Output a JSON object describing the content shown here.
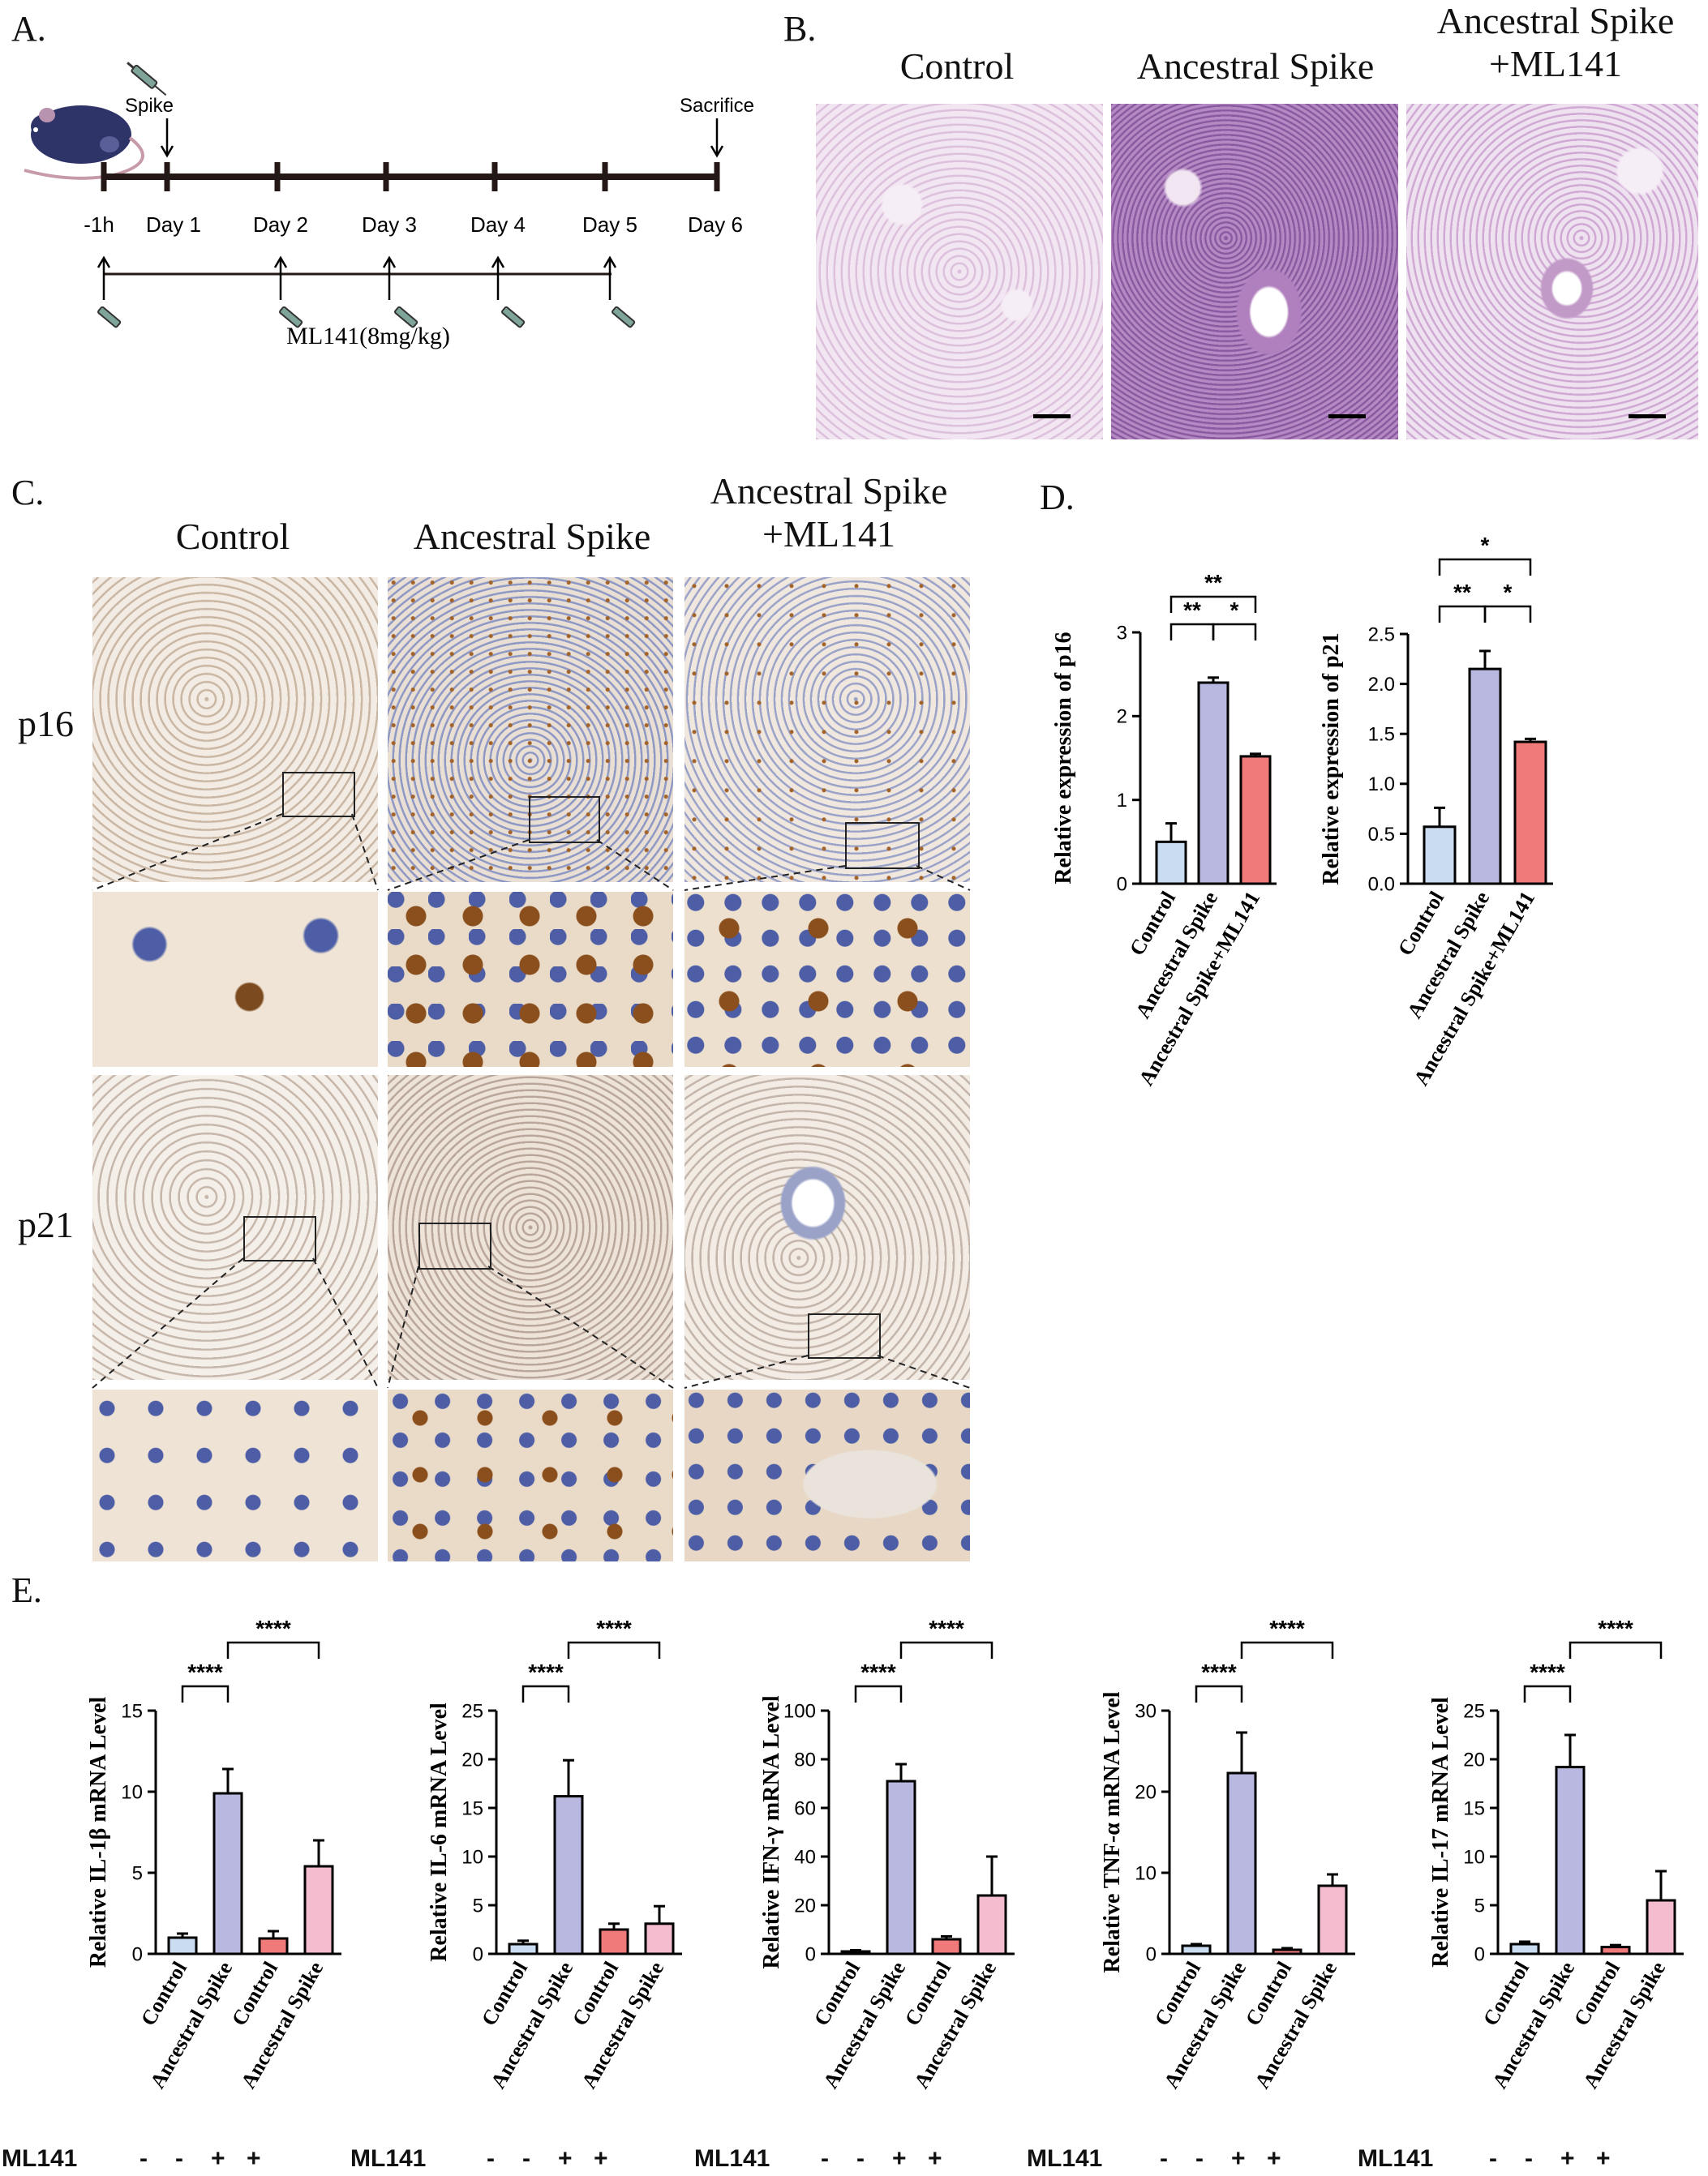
{
  "panels": {
    "A": {
      "label": "A.",
      "spike": "Spike",
      "sacrifice": "Sacrifice",
      "days": [
        "-1h",
        "Day 1",
        "Day 2",
        "Day 3",
        "Day 4",
        "Day 5",
        "Day 6"
      ],
      "drug": "ML141(8mg/kg)"
    },
    "B": {
      "label": "B.",
      "columns": [
        "Control",
        "Ancestral Spike",
        "Ancestral Spike\n+ML141"
      ]
    },
    "C": {
      "label": "C.",
      "columns": [
        "Control",
        "Ancestral Spike",
        "Ancestral Spike\n+ML141"
      ],
      "rows": [
        "p16",
        "p21"
      ]
    },
    "D": {
      "label": "D."
    },
    "E": {
      "label": "E.",
      "ml141_label": "ML141",
      "ml141_signs": [
        "-",
        "-",
        "+",
        "+"
      ]
    }
  },
  "colors": {
    "control": "#c9dcf0",
    "spike": "#b8b8e0",
    "spike_ml141": "#f07a7a",
    "ml141_spike": "#f5bcd0",
    "he_bg": "#e9d6ea",
    "ihc_bg": "#efe6dd"
  },
  "chart_data": [
    {
      "type": "bar",
      "panel": "D",
      "categories": [
        "Control",
        "Ancestral Spike",
        "Ancestral Spike+ML141"
      ],
      "values": [
        0.5,
        2.4,
        1.52
      ],
      "errors": [
        0.22,
        0.06,
        0.03
      ],
      "ylabel": "Relative  expression of p16",
      "ylim": [
        0,
        3
      ],
      "yticks": [
        "0",
        "1",
        "2",
        "3"
      ],
      "significance": [
        {
          "pair": [
            0,
            1
          ],
          "label": "**"
        },
        {
          "pair": [
            1,
            2
          ],
          "label": "*"
        },
        {
          "pair": [
            0,
            2
          ],
          "label": "**"
        }
      ]
    },
    {
      "type": "bar",
      "panel": "D",
      "categories": [
        "Control",
        "Ancestral Spike",
        "Ancestral Spike+ML141"
      ],
      "values": [
        0.57,
        2.15,
        1.42
      ],
      "errors": [
        0.19,
        0.18,
        0.03
      ],
      "ylabel": "Relative  expression of p21",
      "ylim": [
        0,
        2.5
      ],
      "yticks": [
        "0.0",
        "0.5",
        "1.0",
        "1.5",
        "2.0",
        "2.5"
      ],
      "significance": [
        {
          "pair": [
            0,
            1
          ],
          "label": "**"
        },
        {
          "pair": [
            1,
            2
          ],
          "label": "*"
        },
        {
          "pair": [
            0,
            2
          ],
          "label": "*"
        }
      ]
    },
    {
      "type": "bar",
      "panel": "E",
      "categories": [
        "Control",
        "Ancestral Spike",
        "Control",
        "Ancestral Spike"
      ],
      "values": [
        1.0,
        9.9,
        0.95,
        5.4
      ],
      "errors": [
        0.25,
        1.5,
        0.45,
        1.6
      ],
      "ylabel": "Relative IL-1β mRNA Level",
      "ylim": [
        0,
        15
      ],
      "yticks": [
        "0",
        "5",
        "10",
        "15"
      ],
      "significance": [
        {
          "pair": [
            0,
            1
          ],
          "label": "****"
        },
        {
          "pair": [
            1,
            3
          ],
          "label": "****"
        }
      ]
    },
    {
      "type": "bar",
      "panel": "E",
      "categories": [
        "Control",
        "Ancestral Spike",
        "Control",
        "Ancestral Spike"
      ],
      "values": [
        1.0,
        16.2,
        2.5,
        3.1
      ],
      "errors": [
        0.35,
        3.7,
        0.6,
        1.8
      ],
      "ylabel": "Relative IL-6 mRNA Level",
      "ylim": [
        0,
        25
      ],
      "yticks": [
        "0",
        "5",
        "10",
        "15",
        "20",
        "25"
      ],
      "significance": [
        {
          "pair": [
            0,
            1
          ],
          "label": "****"
        },
        {
          "pair": [
            1,
            3
          ],
          "label": "****"
        }
      ]
    },
    {
      "type": "bar",
      "panel": "E",
      "categories": [
        "Control",
        "Ancestral Spike",
        "Control",
        "Ancestral Spike"
      ],
      "values": [
        1.0,
        71.0,
        6.0,
        24.0
      ],
      "errors": [
        0.5,
        7.0,
        1.2,
        16.0
      ],
      "ylabel": "Relative IFN-γ mRNA Level",
      "ylim": [
        0,
        100
      ],
      "yticks": [
        "0",
        "20",
        "40",
        "60",
        "80",
        "100"
      ],
      "significance": [
        {
          "pair": [
            0,
            1
          ],
          "label": "****"
        },
        {
          "pair": [
            1,
            3
          ],
          "label": "****"
        }
      ]
    },
    {
      "type": "bar",
      "panel": "E",
      "categories": [
        "Control",
        "Ancestral Spike",
        "Control",
        "Ancestral Spike"
      ],
      "values": [
        1.0,
        22.3,
        0.5,
        8.4
      ],
      "errors": [
        0.2,
        5.0,
        0.2,
        1.4
      ],
      "ylabel": "Relative TNF-α mRNA Level",
      "ylim": [
        0,
        30
      ],
      "yticks": [
        "0",
        "10",
        "20",
        "30"
      ],
      "significance": [
        {
          "pair": [
            0,
            1
          ],
          "label": "****"
        },
        {
          "pair": [
            1,
            3
          ],
          "label": "****"
        }
      ]
    },
    {
      "type": "bar",
      "panel": "E",
      "categories": [
        "Control",
        "Ancestral Spike",
        "Control",
        "Ancestral Spike"
      ],
      "values": [
        1.0,
        19.2,
        0.7,
        5.5
      ],
      "errors": [
        0.25,
        3.3,
        0.2,
        3.0
      ],
      "ylabel": "Relative IL-17 mRNA Level",
      "ylim": [
        0,
        25
      ],
      "yticks": [
        "0",
        "5",
        "10",
        "15",
        "20",
        "25"
      ],
      "significance": [
        {
          "pair": [
            0,
            1
          ],
          "label": "****"
        },
        {
          "pair": [
            1,
            3
          ],
          "label": "****"
        }
      ]
    }
  ]
}
